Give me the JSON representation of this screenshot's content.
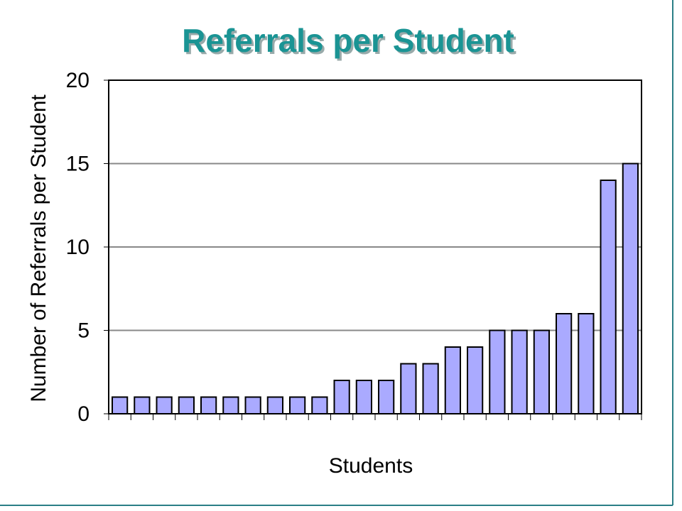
{
  "chart_data": {
    "type": "bar",
    "title": "Referrals per Student",
    "x_label": "Students",
    "y_label": "Number of Referrals per Student",
    "categories": [
      null,
      null,
      null,
      null,
      null,
      null,
      null,
      null,
      null,
      null,
      null,
      null,
      null,
      null,
      null,
      null,
      null,
      null,
      null,
      null,
      null,
      null,
      null,
      null
    ],
    "values": [
      1,
      1,
      1,
      1,
      1,
      1,
      1,
      1,
      1,
      1,
      2,
      2,
      2,
      3,
      3,
      4,
      4,
      5,
      5,
      5,
      6,
      6,
      14,
      15
    ],
    "color": "#aaaaff",
    "ylim": [
      0,
      20
    ],
    "yticks": [
      0,
      5,
      10,
      15,
      20
    ],
    "grid": true
  }
}
